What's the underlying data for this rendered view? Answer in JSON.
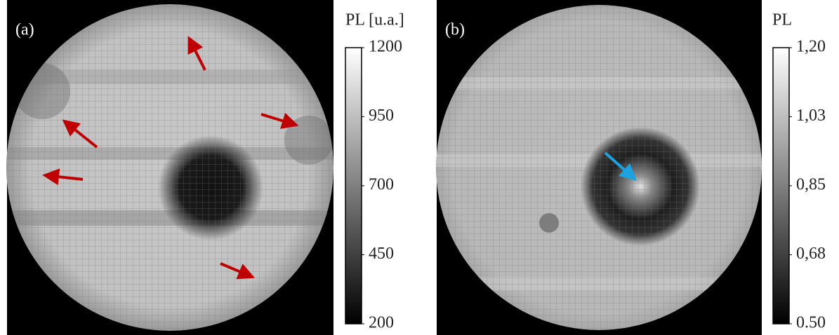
{
  "panels": [
    {
      "label": "(a)",
      "colorbar": {
        "title": "PL [u.a.]",
        "lim": [
          200,
          1200
        ],
        "ticks": [
          200,
          450,
          700,
          950,
          1200
        ]
      }
    },
    {
      "label": "(b)",
      "colorbar": {
        "title": "PL",
        "lim": [
          0.5,
          1.2
        ],
        "ticks": [
          {
            "value": 0.5,
            "label": "0.50"
          },
          {
            "value": 0.675,
            "label": "0,68"
          },
          {
            "value": 0.85,
            "label": "0,85"
          },
          {
            "value": 1.025,
            "label": "1,03"
          },
          {
            "value": 1.2,
            "label": "1,20"
          }
        ]
      }
    }
  ]
}
